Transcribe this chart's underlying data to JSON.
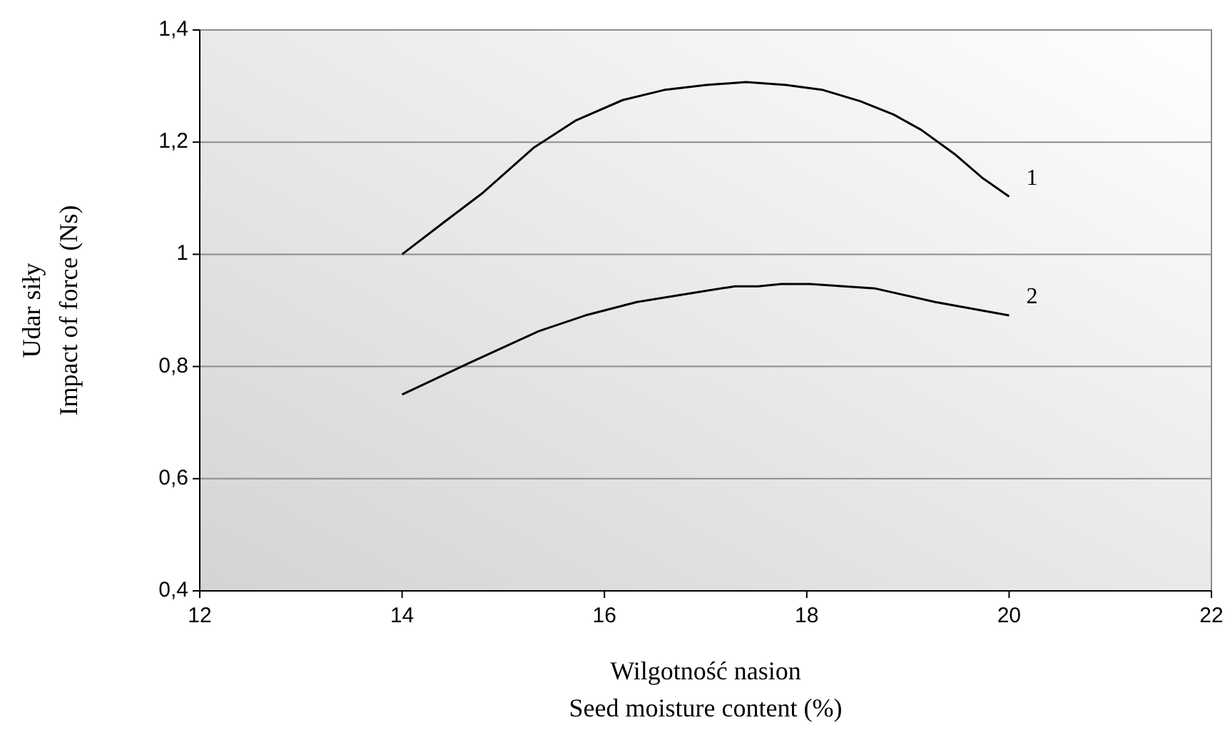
{
  "chart_data": {
    "type": "line",
    "xlabel": "Wilgotność nasion\nSeed moisture content (%)",
    "ylabel": "Udar siły\nImpact of force (Ns)",
    "xlim": [
      12,
      22
    ],
    "xticks": [
      12,
      14,
      16,
      18,
      20,
      22
    ],
    "ylim": [
      0.4,
      1.4
    ],
    "yticks": [
      {
        "value": 0.4,
        "label": "0,4"
      },
      {
        "value": 0.6,
        "label": "0,6"
      },
      {
        "value": 0.8,
        "label": "0,8"
      },
      {
        "value": 1,
        "label": "1"
      },
      {
        "value": 1.2,
        "label": "1,2"
      },
      {
        "value": 1.4,
        "label": "1,4"
      }
    ],
    "grid": "y",
    "marker": "none",
    "line_style": "solid",
    "series": [
      {
        "name": "1",
        "color": "#000000",
        "x": [
          14,
          14.42,
          14.8,
          15.3,
          15.72,
          16.18,
          16.59,
          17.01,
          17.4,
          17.79,
          18.16,
          18.53,
          18.86,
          19.13,
          19.46,
          19.73,
          20
        ],
        "values": [
          1.0,
          1.058,
          1.11,
          1.19,
          1.239,
          1.275,
          1.293,
          1.302,
          1.307,
          1.302,
          1.293,
          1.273,
          1.249,
          1.222,
          1.179,
          1.137,
          1.103
        ]
      },
      {
        "name": "2",
        "color": "#000000",
        "x": [
          14,
          14.66,
          15.35,
          15.81,
          16.32,
          16.83,
          17.29,
          17.52,
          17.75,
          18.03,
          18.68,
          19.27,
          20
        ],
        "values": [
          0.75,
          0.806,
          0.863,
          0.891,
          0.915,
          0.93,
          0.943,
          0.943,
          0.947,
          0.947,
          0.939,
          0.915,
          0.891
        ]
      }
    ]
  }
}
